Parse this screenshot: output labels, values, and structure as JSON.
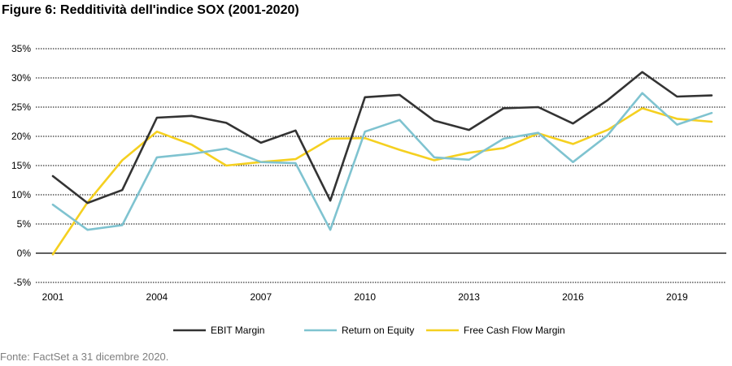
{
  "title": "Figure 6: Redditività dell'indice SOX (2001-2020)",
  "source": "Fonte: FactSet a 31 dicembre  2020.",
  "chart_data": {
    "type": "line",
    "title": "Figure 6: Redditività dell'indice SOX (2001-2020)",
    "xlabel": "",
    "ylabel": "",
    "x": [
      2001,
      2002,
      2003,
      2004,
      2005,
      2006,
      2007,
      2008,
      2009,
      2010,
      2011,
      2012,
      2013,
      2014,
      2015,
      2016,
      2017,
      2018,
      2019,
      2020
    ],
    "x_tick_labels": [
      "2001",
      "2004",
      "2007",
      "2010",
      "2013",
      "2016",
      "2019"
    ],
    "x_tick_values": [
      2001,
      2004,
      2007,
      2010,
      2013,
      2016,
      2019
    ],
    "ylim": [
      -5,
      35
    ],
    "y_ticks": [
      -5,
      0,
      5,
      10,
      15,
      20,
      25,
      30,
      35
    ],
    "y_tick_labels": [
      "-5%",
      "0%",
      "5%",
      "10%",
      "15%",
      "20%",
      "25%",
      "30%",
      "35%"
    ],
    "grid": true,
    "legend_position": "bottom",
    "series": [
      {
        "name": "EBIT Margin",
        "color": "#333333",
        "values": [
          13.2,
          8.6,
          10.8,
          23.2,
          23.5,
          22.3,
          18.9,
          21.0,
          9.0,
          26.7,
          27.1,
          22.7,
          21.1,
          24.8,
          25.0,
          22.2,
          26.2,
          31.0,
          26.8,
          27.0
        ]
      },
      {
        "name": "Return on Equity",
        "color": "#7fc3d0",
        "values": [
          8.3,
          4.0,
          4.8,
          16.4,
          17.0,
          17.9,
          15.6,
          15.4,
          4.0,
          20.8,
          22.8,
          16.4,
          16.0,
          19.6,
          20.6,
          15.6,
          20.2,
          27.4,
          22.0,
          24.0
        ]
      },
      {
        "name": "Free Cash Flow Margin",
        "color": "#f5d020",
        "values": [
          -0.2,
          8.7,
          15.9,
          20.8,
          18.6,
          15.0,
          15.6,
          16.1,
          19.6,
          19.7,
          17.7,
          15.9,
          17.2,
          18.0,
          20.5,
          18.7,
          21.1,
          24.8,
          23.0,
          22.5
        ]
      }
    ]
  }
}
